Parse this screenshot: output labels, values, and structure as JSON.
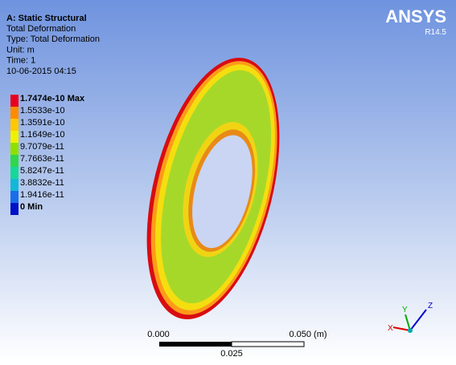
{
  "header": {
    "title": "A: Static Structural",
    "lines": [
      "Total Deformation",
      "Type: Total Deformation",
      "Unit: m",
      "Time: 1",
      "10-06-2015 04:15"
    ]
  },
  "logo": {
    "name": "ANSYS",
    "version": "R14.5"
  },
  "legend": {
    "entries": [
      {
        "label": "1.7474e-10 Max",
        "color": "#e8001c"
      },
      {
        "label": "1.5533e-10",
        "color": "#ff8c00"
      },
      {
        "label": "1.3591e-10",
        "color": "#ffc800"
      },
      {
        "label": "1.1649e-10",
        "color": "#f0f000"
      },
      {
        "label": "9.7079e-11",
        "color": "#8ee000"
      },
      {
        "label": "7.7663e-11",
        "color": "#2ed84a"
      },
      {
        "label": "5.8247e-11",
        "color": "#14d89a"
      },
      {
        "label": "3.8832e-11",
        "color": "#12b8d8"
      },
      {
        "label": "1.9416e-11",
        "color": "#1a6ee8"
      },
      {
        "label": "0 Min",
        "color": "#0010c8"
      }
    ]
  },
  "scale_bar": {
    "start": "0.000",
    "end": "0.050 (m)",
    "mid": "0.025"
  },
  "triad": {
    "x": "X",
    "y": "Y",
    "z": "Z"
  }
}
